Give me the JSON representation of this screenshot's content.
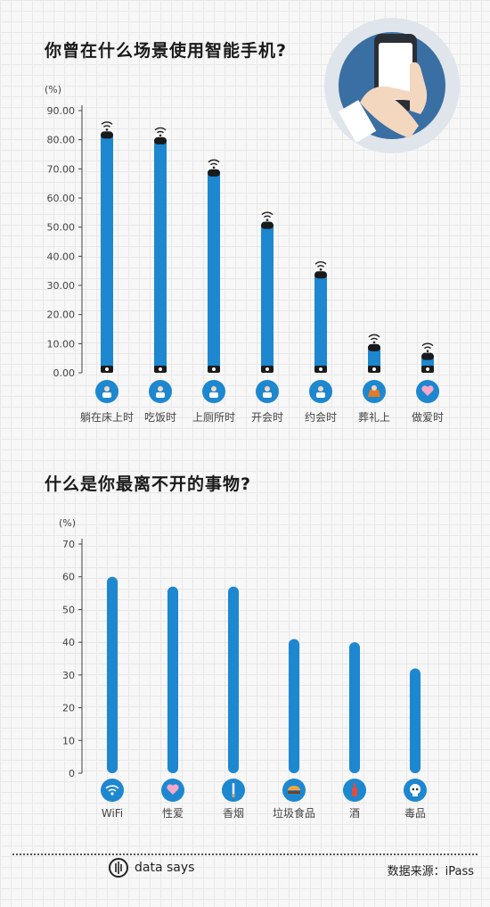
{
  "charts": [
    {
      "title": "你曾在什么场景使用智能手机?",
      "unit_label": "(%)",
      "chart_data": {
        "type": "bar",
        "categories": [
          "躺在床上时",
          "吃饭时",
          "上厕所时",
          "开会时",
          "约会时",
          "葬礼上",
          "做爱时"
        ],
        "values": [
          81,
          79,
          68,
          50,
          33,
          8,
          5
        ],
        "ylim": [
          0,
          90
        ],
        "ytick_labels": [
          "0.00",
          "10.00",
          "20.00",
          "30.00",
          "40.00",
          "50.00",
          "60.00",
          "70.00",
          "80.00",
          "90.00"
        ],
        "icons": [
          "bed-icon",
          "rice-bowl-icon",
          "toilet-icon",
          "meeting-icon",
          "date-couple-icon",
          "funeral-icon",
          "heart-icon"
        ],
        "bar_style": "phone-with-wifi"
      }
    },
    {
      "title": "什么是你最离不开的事物?",
      "unit_label": "(%)",
      "chart_data": {
        "type": "bar",
        "categories": [
          "WiFi",
          "性爱",
          "香烟",
          "垃圾食品",
          "酒",
          "毒品"
        ],
        "values": [
          60,
          57,
          57,
          41,
          40,
          32
        ],
        "ylim": [
          0,
          70
        ],
        "ytick_labels": [
          "0",
          "10",
          "20",
          "30",
          "40",
          "50",
          "60",
          "70"
        ],
        "icons": [
          "wifi-icon",
          "heart-icon",
          "cigarette-icon",
          "burger-icon",
          "wine-bottle-icon",
          "skull-icon"
        ],
        "bar_style": "rounded"
      }
    }
  ],
  "footer": {
    "brand": "data says",
    "source": "数据来源：iPass"
  },
  "colors": {
    "bar": "#1d87d0",
    "icon_circle": "#1d87d0",
    "axis": "#444444",
    "phone_top": "#1a1a1a"
  }
}
